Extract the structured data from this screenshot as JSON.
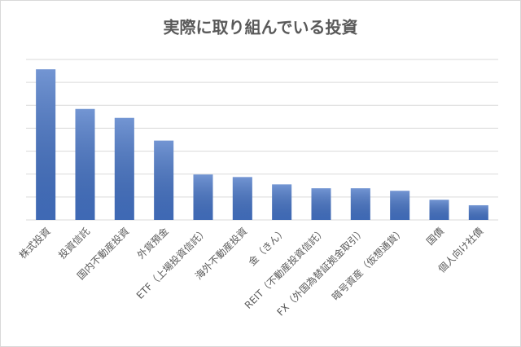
{
  "chart_data": {
    "type": "bar",
    "title": "実際に取り組んでいる投資",
    "categories": [
      "株式投資",
      "投資信託",
      "国内不動産投資",
      "外貨預金",
      "ETF（上場投資信託）",
      "海外不動産投資",
      "金（きん）",
      "REIT（不動産投資信託）",
      "FX（外国為替証拠金取引）",
      "暗号資産（仮想通貨）",
      "国債",
      "個人向け社債"
    ],
    "values": [
      6.57,
      4.84,
      4.45,
      3.46,
      1.98,
      1.87,
      1.55,
      1.38,
      1.38,
      1.27,
      0.88,
      0.64
    ],
    "color": "#4472c4",
    "ylim": [
      0,
      7
    ],
    "yticks": [
      0,
      1,
      2,
      3,
      4,
      5,
      6,
      7
    ],
    "grid": true
  }
}
